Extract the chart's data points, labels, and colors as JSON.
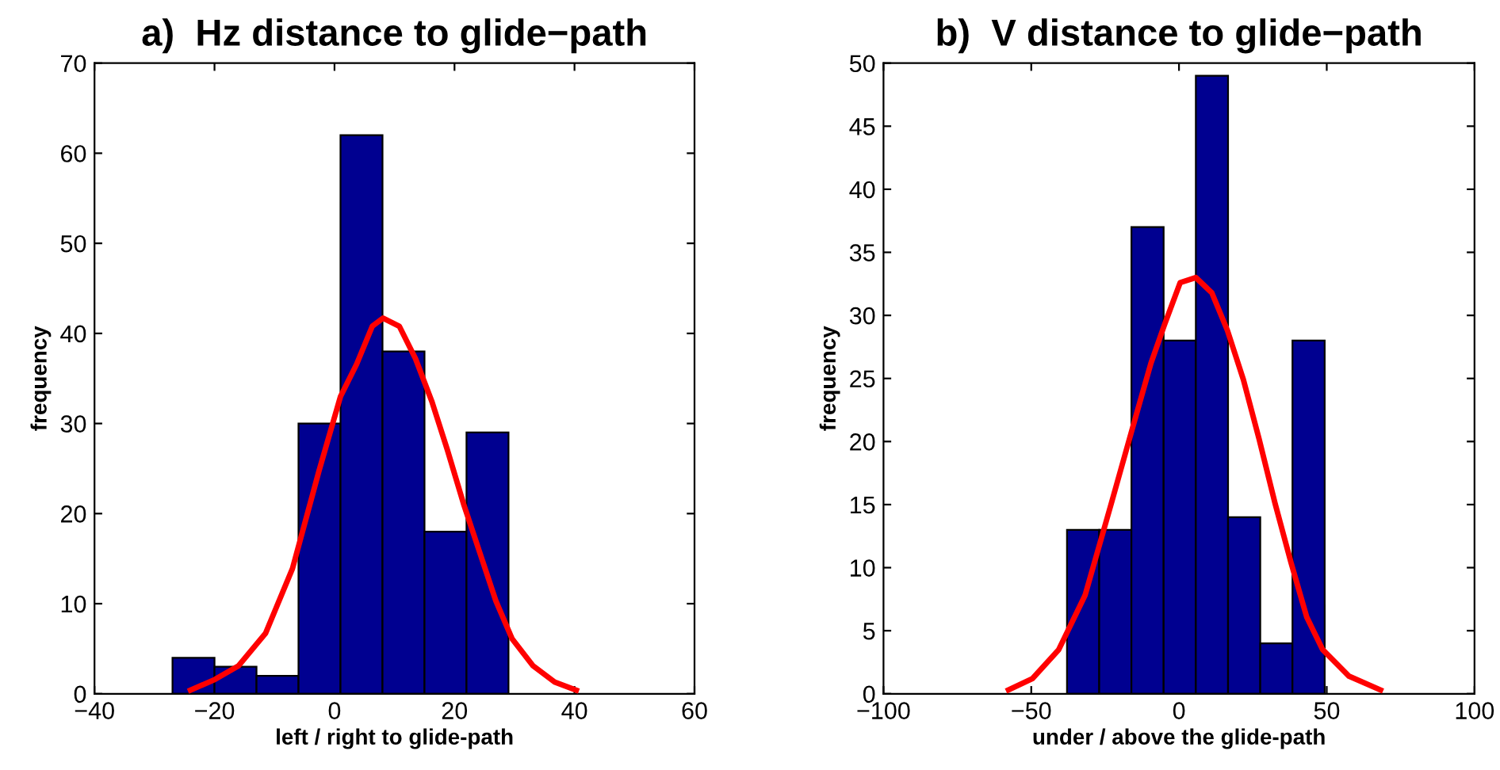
{
  "chart_data": [
    {
      "type": "histogram",
      "title": "a)  Hz distance to glide−path",
      "xlabel": "left / right to glide-path",
      "ylabel": "frequency",
      "xlim": [
        -40,
        60
      ],
      "xticks": [
        -40,
        -20,
        0,
        20,
        40,
        60
      ],
      "ylim": [
        0,
        70
      ],
      "yticks": [
        0,
        10,
        20,
        30,
        40,
        50,
        60,
        70
      ],
      "grid": false,
      "legend": false,
      "series": [
        {
          "type": "histogram",
          "color": "#000090",
          "bins": [
            -27,
            -20,
            -13,
            -6,
            1,
            8,
            15,
            22,
            29
          ],
          "values": [
            4,
            3,
            2,
            30,
            62,
            38,
            18,
            29
          ]
        },
        {
          "type": "line",
          "color": "#ff0000",
          "x": [
            -24,
            -19.9,
            -16,
            -11.5,
            -7,
            -2.6,
            1,
            3.7,
            6.3,
            8.1,
            10.8,
            13.5,
            16.2,
            18.8,
            21.5,
            24.2,
            26.9,
            29.6,
            33.1,
            36.7,
            40.3
          ],
          "values": [
            0.4,
            1.6,
            3.1,
            6.7,
            13.9,
            24.7,
            33,
            36.6,
            40.8,
            41.7,
            40.8,
            37.2,
            32.5,
            27.1,
            21.1,
            15.7,
            10.3,
            6.1,
            3.1,
            1.3,
            0.4
          ]
        }
      ]
    },
    {
      "type": "histogram",
      "title": "b)  V distance to glide−path",
      "xlabel": "under / above the glide-path",
      "ylabel": "frequency",
      "xlim": [
        -100,
        100
      ],
      "xticks": [
        -100,
        -50,
        0,
        50,
        100
      ],
      "ylim": [
        0,
        50
      ],
      "yticks": [
        0,
        5,
        10,
        15,
        20,
        25,
        30,
        35,
        40,
        45,
        50
      ],
      "grid": false,
      "legend": false,
      "series": [
        {
          "type": "histogram",
          "color": "#000090",
          "bins": [
            -37.9,
            -27,
            -16.1,
            -5.2,
            5.7,
            16.6,
            27.5,
            38.4,
            49.3
          ],
          "values": [
            13,
            13,
            37,
            28,
            49,
            14,
            4,
            28
          ]
        },
        {
          "type": "line",
          "color": "#ff0000",
          "x": [
            -57.7,
            -49.6,
            -40.7,
            -31.8,
            -22.9,
            -15.7,
            -9.5,
            -5,
            0.4,
            5.7,
            11.1,
            16.4,
            21.8,
            27.1,
            32.5,
            37.9,
            43.2,
            48.6,
            57.5,
            68.2
          ],
          "values": [
            0.3,
            1.2,
            3.5,
            7.8,
            15.1,
            21.1,
            26.2,
            29.2,
            32.6,
            33,
            31.8,
            28.8,
            24.9,
            20.2,
            15.1,
            10.4,
            6.1,
            3.5,
            1.4,
            0.3
          ]
        }
      ]
    }
  ]
}
